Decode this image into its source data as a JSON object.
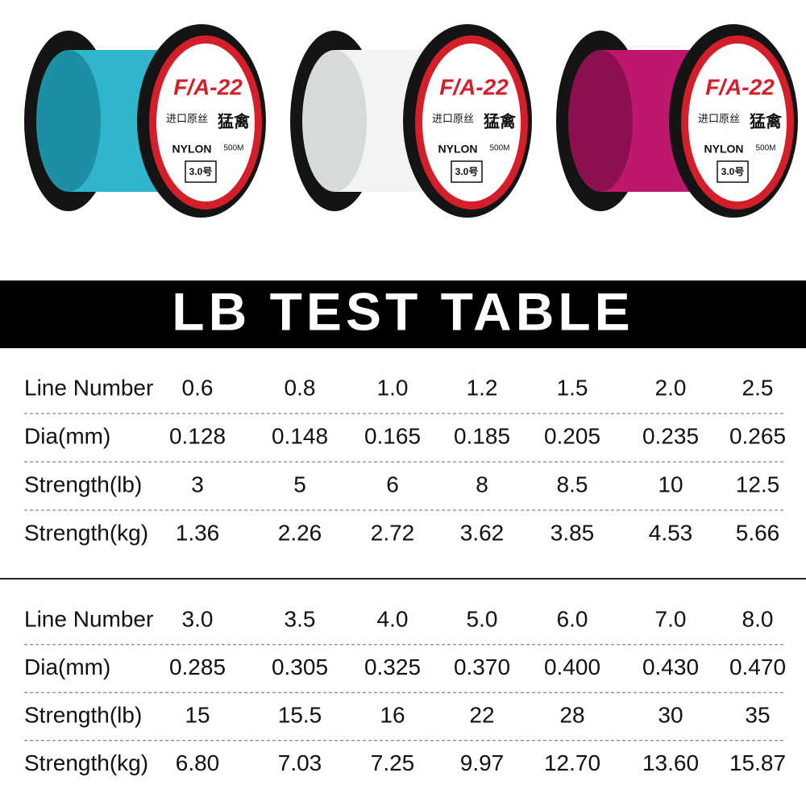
{
  "spool_label": {
    "brand": "F/A-22",
    "subtitle": "进口原丝",
    "name": "猛禽",
    "material": "NYLON",
    "length": "500M",
    "size": "3.0号"
  },
  "banner": {
    "title": "LB TEST TABLE"
  },
  "tables": [
    {
      "rows": [
        [
          "Line Number",
          "0.6",
          "0.8",
          "1.0",
          "1.2",
          "1.5",
          "2.0",
          "2.5"
        ],
        [
          "Dia(mm)",
          "0.128",
          "0.148",
          "0.165",
          "0.185",
          "0.205",
          "0.235",
          "0.265"
        ],
        [
          "Strength(lb)",
          "3",
          "5",
          "6",
          "8",
          "8.5",
          "10",
          "12.5"
        ],
        [
          "Strength(kg)",
          "1.36",
          "2.26",
          "2.72",
          "3.62",
          "3.85",
          "4.53",
          "5.66"
        ]
      ]
    },
    {
      "rows": [
        [
          "Line Number",
          "3.0",
          "3.5",
          "4.0",
          "5.0",
          "6.0",
          "7.0",
          "8.0"
        ],
        [
          "Dia(mm)",
          "0.285",
          "0.305",
          "0.325",
          "0.370",
          "0.400",
          "0.430",
          "0.470"
        ],
        [
          "Strength(lb)",
          "15",
          "15.5",
          "16",
          "22",
          "28",
          "30",
          "35"
        ],
        [
          "Strength(kg)",
          "6.80",
          "7.03",
          "7.25",
          "9.97",
          "12.70",
          "13.60",
          "15.87"
        ]
      ]
    }
  ]
}
